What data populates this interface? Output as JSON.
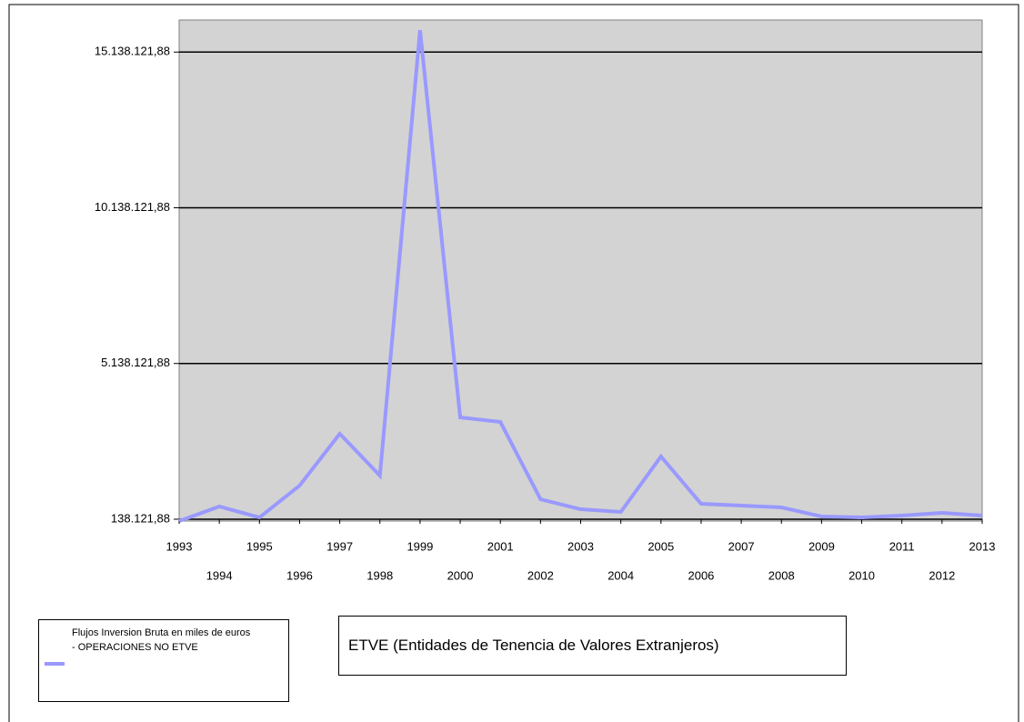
{
  "chart_data": {
    "type": "line",
    "x": [
      1993,
      1994,
      1995,
      1996,
      1997,
      1998,
      1999,
      2000,
      2001,
      2002,
      2003,
      2004,
      2005,
      2006,
      2007,
      2008,
      2009,
      2010,
      2011,
      2012,
      2013
    ],
    "series": [
      {
        "name": "Flujos Inversion Bruta en miles de euros - OPERACIONES NO ETVE",
        "color": "#9999ff",
        "values": [
          80000,
          547000,
          196000,
          1218000,
          2882000,
          1539000,
          15840000,
          3407000,
          3261000,
          780000,
          459000,
          372000,
          2152000,
          634000,
          576000,
          517000,
          226000,
          196000,
          255000,
          342000,
          255000
        ]
      }
    ],
    "xlim": [
      1993,
      2013
    ],
    "xticks": [
      1993,
      1994,
      1995,
      1996,
      1997,
      1998,
      1999,
      2000,
      2001,
      2002,
      2003,
      2004,
      2005,
      2006,
      2007,
      2008,
      2009,
      2010,
      2011,
      2012,
      2013
    ],
    "ylim": [
      138121.88,
      16138121.88
    ],
    "yticks": [
      {
        "value": 138121.88,
        "label": "138.121,88"
      },
      {
        "value": 5138121.88,
        "label": "5.138.121,88"
      },
      {
        "value": 10138121.88,
        "label": "10.138.121,88"
      },
      {
        "value": 15138121.88,
        "label": "15.138.121,88"
      }
    ],
    "grid": true,
    "annotation": "ETVE (Entidades de Tenencia de Valores Extranjeros)"
  }
}
